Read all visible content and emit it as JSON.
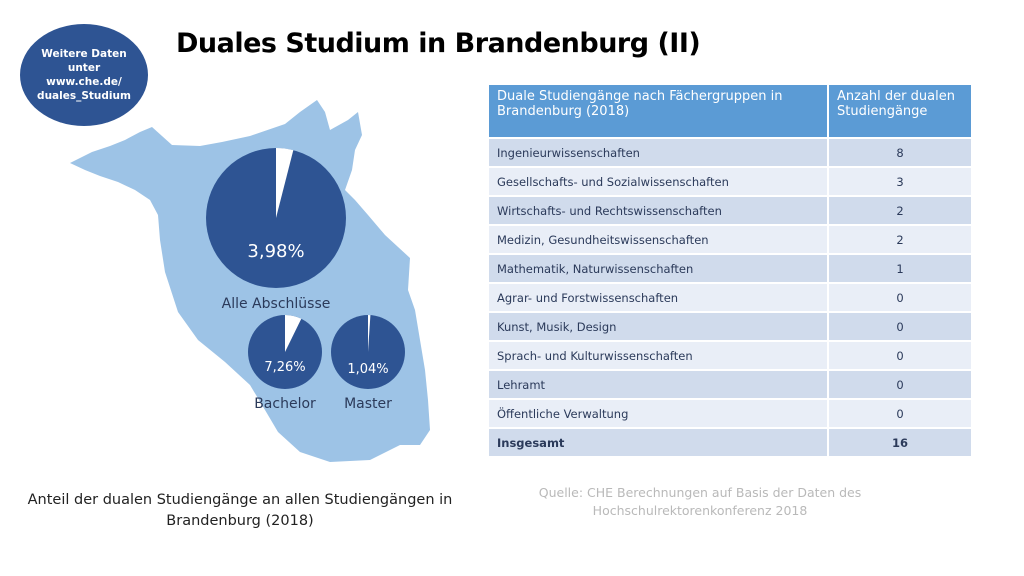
{
  "title": "Duales Studium in Brandenburg (II)",
  "bubble": {
    "line1": "Weitere Daten",
    "line2": "unter",
    "line3": "www.che.de/",
    "line4": "duales_Studium"
  },
  "chart_data": {
    "type": "pie",
    "pies": [
      {
        "name": "Alle Abschlüsse",
        "label": "3,98%",
        "value": 3.98
      },
      {
        "name": "Bachelor",
        "label": "7,26%",
        "value": 7.26
      },
      {
        "name": "Master",
        "label": "1,04%",
        "value": 1.04
      }
    ],
    "colors": {
      "main": "#2e5493",
      "share": "#ffffff",
      "map": "#9dc3e6"
    }
  },
  "table": {
    "headers": [
      "Duale Studiengänge nach Fächergruppen in Brandenburg (2018)",
      "Anzahl der dualen Studiengänge"
    ],
    "rows": [
      [
        "Ingenieurwissenschaften",
        "8"
      ],
      [
        "Gesellschafts- und Sozialwissenschaften",
        "3"
      ],
      [
        "Wirtschafts- und Rechtswissenschaften",
        "2"
      ],
      [
        "Medizin, Gesundheitswissenschaften",
        "2"
      ],
      [
        "Mathematik, Naturwissenschaften",
        "1"
      ],
      [
        "Agrar- und Forstwissenschaften",
        "0"
      ],
      [
        "Kunst, Musik, Design",
        "0"
      ],
      [
        "Sprach- und Kulturwissenschaften",
        "0"
      ],
      [
        "Lehramt",
        "0"
      ],
      [
        "Öffentliche Verwaltung",
        "0"
      ],
      [
        "Insgesamt",
        "16"
      ]
    ]
  },
  "caption": "Anteil der dualen Studiengänge an allen Studiengängen in Brandenburg (2018)",
  "source": "Quelle: CHE Berechnungen auf Basis der Daten des Hochschulrektorenkonferenz 2018"
}
